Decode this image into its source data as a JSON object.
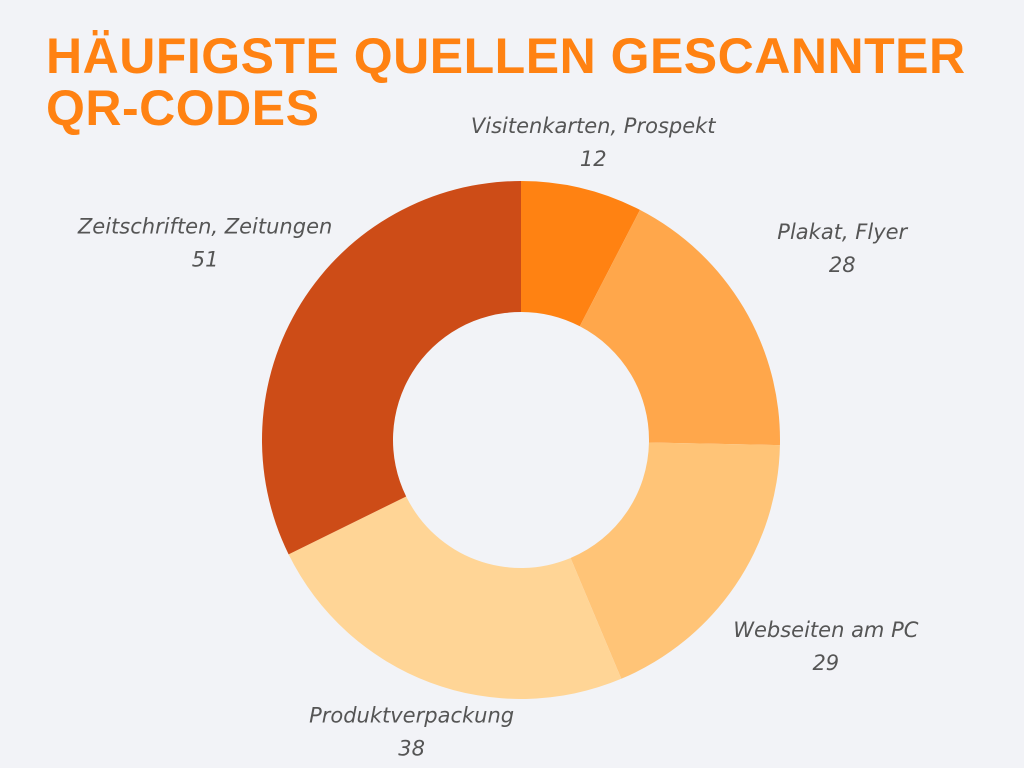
{
  "chart_data": {
    "type": "donut",
    "title": "HÄUFIGSTE QUELLEN GESCANNTER QR-CODES",
    "categories": [
      "Visitenkarten, Prospekt",
      "Plakat, Flyer",
      "Webseiten am PC",
      "Produktverpackung",
      "Zeitschriften, Zeitungen"
    ],
    "values": [
      12,
      28,
      29,
      38,
      51
    ],
    "colors": [
      "#ff8212",
      "#ffa74b",
      "#ffc477",
      "#ffd596",
      "#cd4c17"
    ]
  }
}
